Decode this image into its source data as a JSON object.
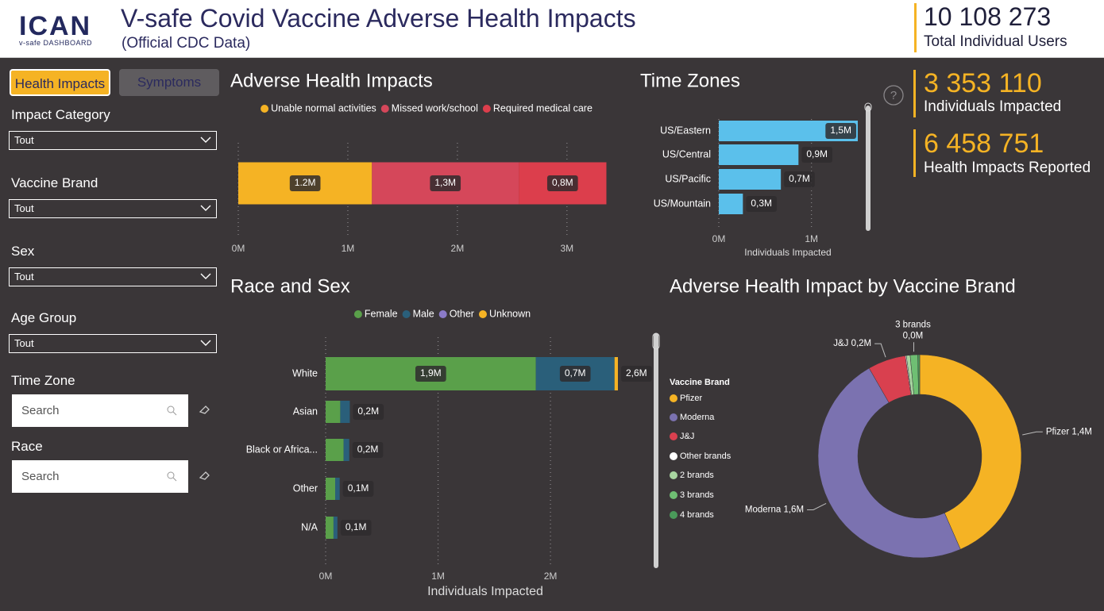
{
  "header": {
    "logo": "ICAN",
    "logo_subtitle": "v-safe DASHBOARD",
    "title": "V-safe Covid Vaccine Adverse Health Impacts",
    "subtitle": "(Official CDC Data)",
    "kpi": {
      "value": "10 108 273",
      "label": "Total Individual Users"
    }
  },
  "sidebar": {
    "tabs": [
      "Health Impacts",
      "Symptoms"
    ],
    "dropdowns": [
      {
        "label": "Impact Category",
        "value": "Tout"
      },
      {
        "label": "Vaccine Brand",
        "value": "Tout"
      },
      {
        "label": "Sex",
        "value": "Tout"
      },
      {
        "label": "Age Group",
        "value": "Tout"
      }
    ],
    "searches": [
      {
        "label": "Time Zone",
        "placeholder": "Search"
      },
      {
        "label": "Race",
        "placeholder": "Search"
      }
    ]
  },
  "kpis": [
    {
      "value": "3 353 110",
      "label": "Individuals Impacted"
    },
    {
      "value": "6 458 751",
      "label": "Health Impacts Reported"
    }
  ],
  "help_icon": "?",
  "chart_data": [
    {
      "type": "bar",
      "orientation": "horizontal",
      "stacked": true,
      "title": "Adverse Health Impacts",
      "categories": [
        null
      ],
      "series": [
        {
          "name": "Unable normal activities",
          "color": "#f5b324",
          "values": [
            1220000
          ],
          "value_labels": [
            "1.2M"
          ]
        },
        {
          "name": "Missed work/school",
          "color": "#d5475a",
          "values": [
            1340000
          ],
          "value_labels": [
            "1,3M"
          ]
        },
        {
          "name": "Required medical care",
          "color": "#dc3e4c",
          "values": [
            800000
          ],
          "value_labels": [
            "0,8M"
          ]
        }
      ],
      "xlim": [
        0,
        3400000
      ],
      "xticks": [
        {
          "value": 0,
          "label": "0M"
        },
        {
          "value": 1000000,
          "label": "1M"
        },
        {
          "value": 2000000,
          "label": "2M"
        },
        {
          "value": 3000000,
          "label": "3M"
        }
      ],
      "grid": true,
      "legend": "top"
    },
    {
      "type": "bar",
      "orientation": "horizontal",
      "title": "Time Zones",
      "categories": [
        "US/Eastern",
        "US/Central",
        "US/Pacific",
        "US/Mountain"
      ],
      "values": [
        1500000,
        860000,
        670000,
        260000
      ],
      "value_labels": [
        "1,5M",
        "0,9M",
        "0,7M",
        "0,3M"
      ],
      "color": "#5bc0eb",
      "xlim": [
        0,
        1500000
      ],
      "xticks": [
        {
          "value": 0,
          "label": "0M"
        },
        {
          "value": 1000000,
          "label": "1M"
        }
      ],
      "xlabel": "Individuals Impacted",
      "grid": true
    },
    {
      "type": "bar",
      "orientation": "horizontal",
      "stacked": true,
      "title": "Race and Sex",
      "categories": [
        "White",
        "Asian",
        "Black or Africa...",
        "Other",
        "N/A"
      ],
      "series": [
        {
          "name": "Female",
          "color": "#5aa04a",
          "values": [
            1870000,
            130000,
            160000,
            85000,
            70000
          ],
          "value_labels": [
            "1,9M",
            null,
            null,
            null,
            null
          ]
        },
        {
          "name": "Male",
          "color": "#2a5f7a",
          "values": [
            700000,
            85000,
            50000,
            40000,
            35000
          ],
          "value_labels": [
            "0,7M",
            null,
            null,
            null,
            null
          ]
        },
        {
          "name": "Other",
          "color": "#8b7bc8",
          "values": [
            0,
            0,
            0,
            0,
            0
          ]
        },
        {
          "name": "Unknown",
          "color": "#f5b324",
          "values": [
            30000,
            0,
            0,
            0,
            0
          ]
        }
      ],
      "total_labels": [
        "2,6M",
        "0,2M",
        "0,2M",
        "0,1M",
        "0,1M"
      ],
      "xlim": [
        0,
        2600000
      ],
      "xticks": [
        {
          "value": 0,
          "label": "0M"
        },
        {
          "value": 1000000,
          "label": "1M"
        },
        {
          "value": 2000000,
          "label": "2M"
        }
      ],
      "xlabel": "Individuals Impacted",
      "grid": true,
      "legend": "top"
    },
    {
      "type": "pie",
      "donut": true,
      "title": "Adverse Health Impact by Vaccine Brand",
      "legend_title": "Vaccine Brand",
      "categories": [
        "Pfizer",
        "Moderna",
        "J&J",
        "Other brands",
        "2 brands",
        "3 brands",
        "4 brands"
      ],
      "values": [
        1440000,
        1600000,
        200000,
        5000,
        20000,
        40000,
        10000
      ],
      "value_labels": [
        "1,4M",
        "1,6M",
        "0,2M",
        null,
        null,
        "0,0M",
        null
      ],
      "colors": [
        "#f5b324",
        "#7b72b0",
        "#d9404f",
        "#ffffff",
        "#a8d5a0",
        "#6fbf73",
        "#4a9a5a"
      ],
      "legend": "left"
    }
  ]
}
